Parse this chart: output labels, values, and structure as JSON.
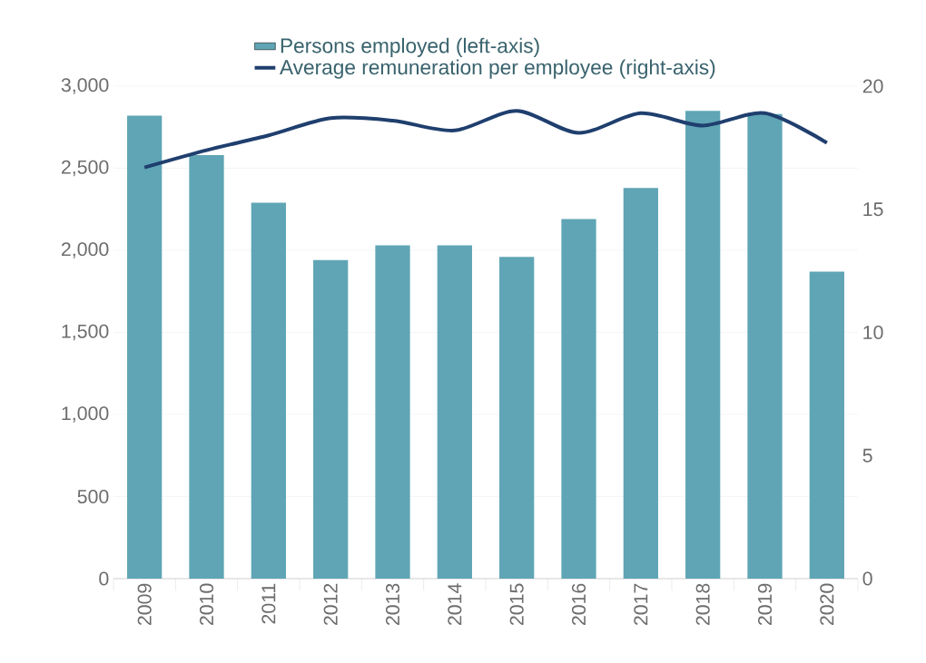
{
  "chart_data": {
    "type": "bar",
    "categories": [
      "2009",
      "2010",
      "2011",
      "2012",
      "2013",
      "2014",
      "2015",
      "2016",
      "2017",
      "2018",
      "2019",
      "2020"
    ],
    "series": [
      {
        "name": "Persons employed (left-axis)",
        "color": "#5fa5b5",
        "values": [
          2820,
          2580,
          2290,
          1940,
          2030,
          2030,
          1960,
          2190,
          2380,
          2850,
          2830,
          1870
        ]
      },
      {
        "name": "Average remuneration per employee (right-axis)",
        "type": "line",
        "axis": "y2",
        "color": "#1f3f6e",
        "values": [
          16.7,
          17.4,
          18.0,
          18.7,
          18.6,
          18.2,
          19.0,
          18.1,
          18.9,
          18.4,
          18.9,
          17.7
        ]
      }
    ],
    "ylim": [
      0,
      3000
    ],
    "yticks": [
      {
        "value": 0,
        "label": "0"
      },
      {
        "value": 500,
        "label": "500"
      },
      {
        "value": 1000,
        "label": "1,000"
      },
      {
        "value": 1500,
        "label": "1,500"
      },
      {
        "value": 2000,
        "label": "2,000"
      },
      {
        "value": 2500,
        "label": "2,500"
      },
      {
        "value": 3000,
        "label": "3,000"
      }
    ],
    "y2lim": [
      0,
      20
    ],
    "y2ticks": [
      0,
      5,
      10,
      15,
      20
    ],
    "grid": "y",
    "legend": "top",
    "marker": "none",
    "line_style": "solid"
  }
}
